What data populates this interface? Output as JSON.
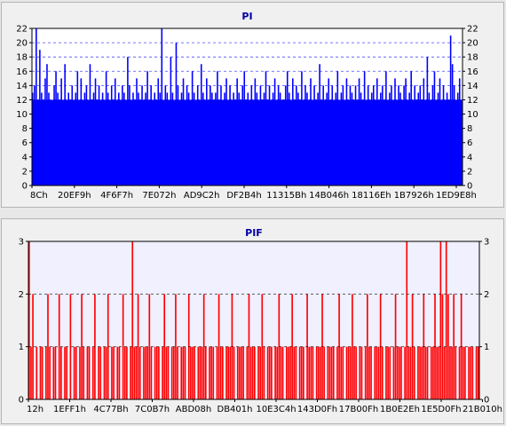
{
  "chart_data": [
    {
      "type": "bar",
      "title": "PI",
      "color": "#0000ff",
      "plot_background": "#ffffff",
      "grid": true,
      "grid_color": "#0000ff",
      "ylim": [
        0,
        22
      ],
      "yticks": [
        0,
        2,
        4,
        6,
        8,
        10,
        12,
        14,
        16,
        18,
        20,
        22
      ],
      "x_tick_labels": [
        "8Ch",
        "20EF9h",
        "4F6F7h",
        "7E072h",
        "AD9C2h",
        "DF2B4h",
        "11315Bh",
        "14B046h",
        "18116Eh",
        "1B7926h",
        "1ED9E8h"
      ],
      "bar_count": 240,
      "baseline": 12,
      "values": [
        13,
        14,
        22,
        12,
        19,
        13,
        12,
        15,
        17,
        13,
        12,
        11,
        14,
        16,
        13,
        12,
        15,
        12,
        17,
        11,
        13,
        12,
        14,
        12,
        13,
        16,
        12,
        15,
        11,
        13,
        14,
        12,
        17,
        12,
        13,
        15,
        12,
        14,
        11,
        13,
        12,
        16,
        13,
        12,
        14,
        12,
        15,
        11,
        13,
        12,
        14,
        13,
        12,
        18,
        14,
        12,
        13,
        12,
        15,
        13,
        12,
        14,
        12,
        13,
        16,
        12,
        14,
        12,
        13,
        12,
        15,
        13,
        22,
        12,
        14,
        13,
        12,
        18,
        13,
        12,
        20,
        14,
        12,
        13,
        15,
        12,
        14,
        13,
        12,
        16,
        13,
        12,
        14,
        12,
        17,
        13,
        12,
        15,
        12,
        14,
        13,
        12,
        13,
        16,
        12,
        14,
        12,
        13,
        15,
        12,
        14,
        12,
        13,
        12,
        15,
        13,
        12,
        14,
        16,
        12,
        13,
        12,
        14,
        12,
        15,
        13,
        12,
        14,
        12,
        13,
        16,
        12,
        14,
        12,
        13,
        15,
        12,
        14,
        13,
        12,
        12,
        14,
        16,
        13,
        12,
        15,
        12,
        14,
        13,
        12,
        16,
        12,
        14,
        13,
        12,
        15,
        12,
        14,
        12,
        13,
        17,
        12,
        14,
        12,
        13,
        15,
        12,
        14,
        12,
        13,
        16,
        12,
        13,
        14,
        12,
        15,
        12,
        14,
        13,
        12,
        14,
        12,
        15,
        13,
        12,
        16,
        12,
        14,
        12,
        13,
        14,
        12,
        15,
        12,
        13,
        14,
        12,
        16,
        12,
        13,
        14,
        12,
        15,
        12,
        14,
        13,
        12,
        14,
        15,
        12,
        13,
        16,
        12,
        14,
        12,
        13,
        14,
        12,
        15,
        12,
        18,
        13,
        12,
        14,
        16,
        12,
        13,
        15,
        12,
        14,
        12,
        13,
        12,
        21,
        17,
        14,
        12,
        13,
        15,
        12
      ]
    },
    {
      "type": "bar",
      "title": "PIF",
      "color": "#ff0000",
      "plot_background": "#f0f0ff",
      "grid": true,
      "grid_color": "#000000",
      "ylim": [
        0,
        3
      ],
      "yticks": [
        0,
        1,
        2,
        3
      ],
      "x_tick_labels": [
        "12h",
        "1EFF1h",
        "4C77Bh",
        "7C0B7h",
        "ABD08h",
        "DB401h",
        "10E3C4h",
        "143D0Fh",
        "17B00Fh",
        "1B0E2Eh",
        "1E5D0Fh",
        "21B010h"
      ],
      "bar_count": 240,
      "values": [
        3,
        1,
        2,
        0,
        1,
        0,
        1,
        1,
        0,
        1,
        2,
        1,
        0,
        1,
        1,
        0,
        2,
        1,
        0,
        1,
        1,
        0,
        2,
        0,
        1,
        1,
        0,
        1,
        2,
        1,
        0,
        1,
        1,
        0,
        1,
        2,
        0,
        1,
        1,
        0,
        1,
        1,
        2,
        0,
        1,
        1,
        0,
        1,
        1,
        0,
        2,
        1,
        1,
        0,
        1,
        3,
        1,
        1,
        2,
        1,
        0,
        1,
        1,
        1,
        2,
        1,
        0,
        1,
        1,
        1,
        0,
        1,
        2,
        1,
        1,
        0,
        1,
        1,
        2,
        1,
        0,
        1,
        1,
        1,
        0,
        2,
        1,
        1,
        1,
        0,
        1,
        1,
        1,
        2,
        1,
        0,
        1,
        1,
        1,
        0,
        1,
        2,
        1,
        1,
        0,
        1,
        1,
        1,
        2,
        1,
        0,
        1,
        1,
        1,
        1,
        0,
        1,
        2,
        1,
        1,
        1,
        0,
        1,
        1,
        2,
        1,
        0,
        1,
        1,
        1,
        0,
        1,
        1,
        2,
        1,
        1,
        0,
        1,
        1,
        1,
        2,
        1,
        1,
        0,
        1,
        1,
        1,
        0,
        2,
        1,
        1,
        1,
        0,
        1,
        1,
        1,
        2,
        1,
        0,
        1,
        1,
        1,
        1,
        0,
        1,
        2,
        1,
        1,
        0,
        1,
        1,
        1,
        2,
        1,
        1,
        0,
        1,
        1,
        0,
        1,
        2,
        1,
        1,
        0,
        1,
        1,
        1,
        2,
        1,
        0,
        1,
        1,
        1,
        0,
        1,
        2,
        1,
        1,
        1,
        0,
        1,
        3,
        1,
        1,
        2,
        1,
        0,
        1,
        1,
        1,
        2,
        1,
        1,
        0,
        1,
        1,
        2,
        1,
        1,
        3,
        2,
        1,
        3,
        2,
        1,
        1,
        2,
        1,
        0,
        1,
        2,
        1,
        1,
        0,
        1,
        1,
        1,
        0,
        1,
        1
      ]
    }
  ]
}
